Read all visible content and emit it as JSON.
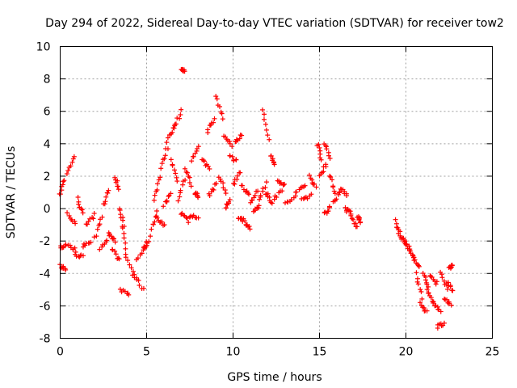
{
  "chart_data": {
    "type": "scatter",
    "title": "Day 294 of 2022, Sidereal Day-to-day VTEC variation (SDTVAR) for receiver tow2",
    "xlabel": "GPS time / hours",
    "ylabel": "SDTVAR / TECUs",
    "xlim": [
      0,
      25
    ],
    "ylim": [
      -8,
      10
    ],
    "xticks": [
      "0",
      "5",
      "10",
      "15",
      "20",
      "25"
    ],
    "yticks": [
      "-8",
      "-6",
      "-4",
      "-2",
      "0",
      "2",
      "4",
      "6",
      "8",
      "10"
    ],
    "grid": true,
    "marker": "+",
    "color": "#ff0000",
    "series": [
      {
        "name": "SDTVAR",
        "segments": [
          [
            0.0,
            0.8,
            0.2,
            1.8
          ],
          [
            0.0,
            -3.5,
            0.3,
            -3.8
          ],
          [
            0.0,
            -2.4,
            0.3,
            -2.3
          ],
          [
            0.5,
            -2.2,
            0.9,
            -2.6
          ],
          [
            0.4,
            2.2,
            0.8,
            3.2
          ],
          [
            0.4,
            -0.3,
            0.9,
            -1.0
          ],
          [
            0.9,
            -2.8,
            1.3,
            -3.0
          ],
          [
            1.0,
            0.6,
            1.3,
            -0.2
          ],
          [
            1.3,
            -2.3,
            1.8,
            -2.2
          ],
          [
            1.5,
            -1.0,
            2.0,
            -0.4
          ],
          [
            2.0,
            -1.8,
            2.4,
            -0.5
          ],
          [
            2.3,
            -2.5,
            2.8,
            -1.8
          ],
          [
            2.5,
            0.2,
            2.8,
            1.2
          ],
          [
            2.8,
            -1.5,
            3.2,
            -2.0
          ],
          [
            3.0,
            -2.5,
            3.4,
            -3.2
          ],
          [
            3.2,
            2.0,
            3.4,
            1.2
          ],
          [
            3.4,
            0.0,
            3.7,
            -1.0
          ],
          [
            3.5,
            -5.0,
            4.0,
            -5.2
          ],
          [
            3.6,
            -1.0,
            3.8,
            -2.8
          ],
          [
            3.8,
            -3.0,
            4.4,
            -4.5
          ],
          [
            4.2,
            -4.0,
            4.8,
            -5.0
          ],
          [
            4.4,
            -3.2,
            5.0,
            -2.2
          ],
          [
            4.8,
            -2.5,
            5.2,
            -1.8
          ],
          [
            5.3,
            -1.2,
            5.6,
            -0.2
          ],
          [
            5.4,
            0.5,
            5.8,
            2.0
          ],
          [
            5.6,
            -0.6,
            6.0,
            -1.0
          ],
          [
            5.8,
            2.5,
            6.2,
            3.8
          ],
          [
            6.0,
            0.2,
            6.4,
            1.0
          ],
          [
            6.2,
            4.2,
            6.6,
            5.0
          ],
          [
            6.4,
            3.0,
            6.8,
            1.8
          ],
          [
            6.6,
            5.0,
            7.0,
            6.0
          ],
          [
            6.8,
            0.6,
            7.2,
            1.8
          ],
          [
            7.0,
            -0.3,
            7.4,
            -0.8
          ],
          [
            7.2,
            2.5,
            7.6,
            1.5
          ],
          [
            7.0,
            8.5,
            7.2,
            8.5
          ],
          [
            7.6,
            3.0,
            8.0,
            3.8
          ],
          [
            7.8,
            1.0,
            8.0,
            0.8
          ],
          [
            7.5,
            -0.5,
            8.0,
            -0.5
          ],
          [
            8.2,
            3.0,
            8.6,
            2.5
          ],
          [
            8.5,
            4.8,
            8.9,
            5.5
          ],
          [
            8.6,
            0.8,
            9.0,
            1.5
          ],
          [
            9.0,
            7.0,
            9.4,
            5.5
          ],
          [
            9.2,
            2.0,
            9.6,
            1.0
          ],
          [
            9.5,
            4.5,
            9.9,
            3.8
          ],
          [
            9.6,
            0.0,
            9.8,
            0.6
          ],
          [
            9.8,
            3.2,
            10.2,
            3.0
          ],
          [
            10.0,
            1.5,
            10.4,
            2.3
          ],
          [
            10.1,
            4.0,
            10.5,
            4.5
          ],
          [
            10.3,
            -0.5,
            10.6,
            -0.7
          ],
          [
            10.5,
            1.5,
            10.9,
            0.8
          ],
          [
            10.7,
            -0.8,
            11.0,
            -1.2
          ],
          [
            11.0,
            0.3,
            11.4,
            1.1
          ],
          [
            11.2,
            -0.3,
            11.5,
            0.2
          ],
          [
            11.5,
            0.5,
            11.9,
            1.6
          ],
          [
            11.7,
            6.0,
            12.1,
            4.3
          ],
          [
            11.9,
            1.0,
            12.2,
            0.5
          ],
          [
            12.2,
            3.2,
            12.4,
            2.8
          ],
          [
            12.3,
            0.4,
            12.8,
            1.2
          ],
          [
            12.6,
            1.8,
            13.0,
            1.4
          ],
          [
            13.0,
            0.3,
            13.6,
            0.7
          ],
          [
            13.6,
            1.0,
            14.2,
            1.4
          ],
          [
            14.0,
            0.6,
            14.5,
            0.8
          ],
          [
            14.4,
            2.0,
            14.8,
            1.4
          ],
          [
            14.9,
            4.0,
            15.1,
            3.0
          ],
          [
            15.0,
            2.0,
            15.4,
            2.8
          ],
          [
            15.3,
            4.0,
            15.6,
            3.2
          ],
          [
            15.3,
            -0.3,
            15.6,
            0.1
          ],
          [
            15.6,
            2.0,
            15.9,
            1.0
          ],
          [
            15.8,
            0.4,
            16.2,
            1.0
          ],
          [
            16.2,
            1.3,
            16.6,
            0.8
          ],
          [
            16.5,
            0.0,
            16.8,
            -0.3
          ],
          [
            16.8,
            -0.5,
            17.2,
            -1.2
          ],
          [
            17.2,
            -0.5,
            17.4,
            -0.8
          ],
          [
            19.4,
            -0.8,
            19.7,
            -1.8
          ],
          [
            19.6,
            -1.4,
            20.0,
            -2.2
          ],
          [
            19.9,
            -2.0,
            20.2,
            -2.5
          ],
          [
            20.2,
            -2.6,
            20.5,
            -3.2
          ],
          [
            20.4,
            -3.0,
            20.8,
            -3.5
          ],
          [
            20.6,
            -4.0,
            20.9,
            -5.5
          ],
          [
            20.8,
            -5.8,
            21.2,
            -6.4
          ],
          [
            21.0,
            -4.0,
            21.3,
            -4.8
          ],
          [
            21.2,
            -5.0,
            21.6,
            -5.8
          ],
          [
            21.4,
            -4.2,
            21.8,
            -4.6
          ],
          [
            21.6,
            -5.8,
            22.0,
            -6.3
          ],
          [
            21.8,
            -7.3,
            22.2,
            -7.1
          ],
          [
            22.0,
            -4.0,
            22.4,
            -5.0
          ],
          [
            22.2,
            -5.5,
            22.6,
            -6.0
          ],
          [
            22.4,
            -4.5,
            22.7,
            -5.0
          ],
          [
            22.5,
            -3.6,
            22.7,
            -3.6
          ]
        ]
      }
    ]
  }
}
